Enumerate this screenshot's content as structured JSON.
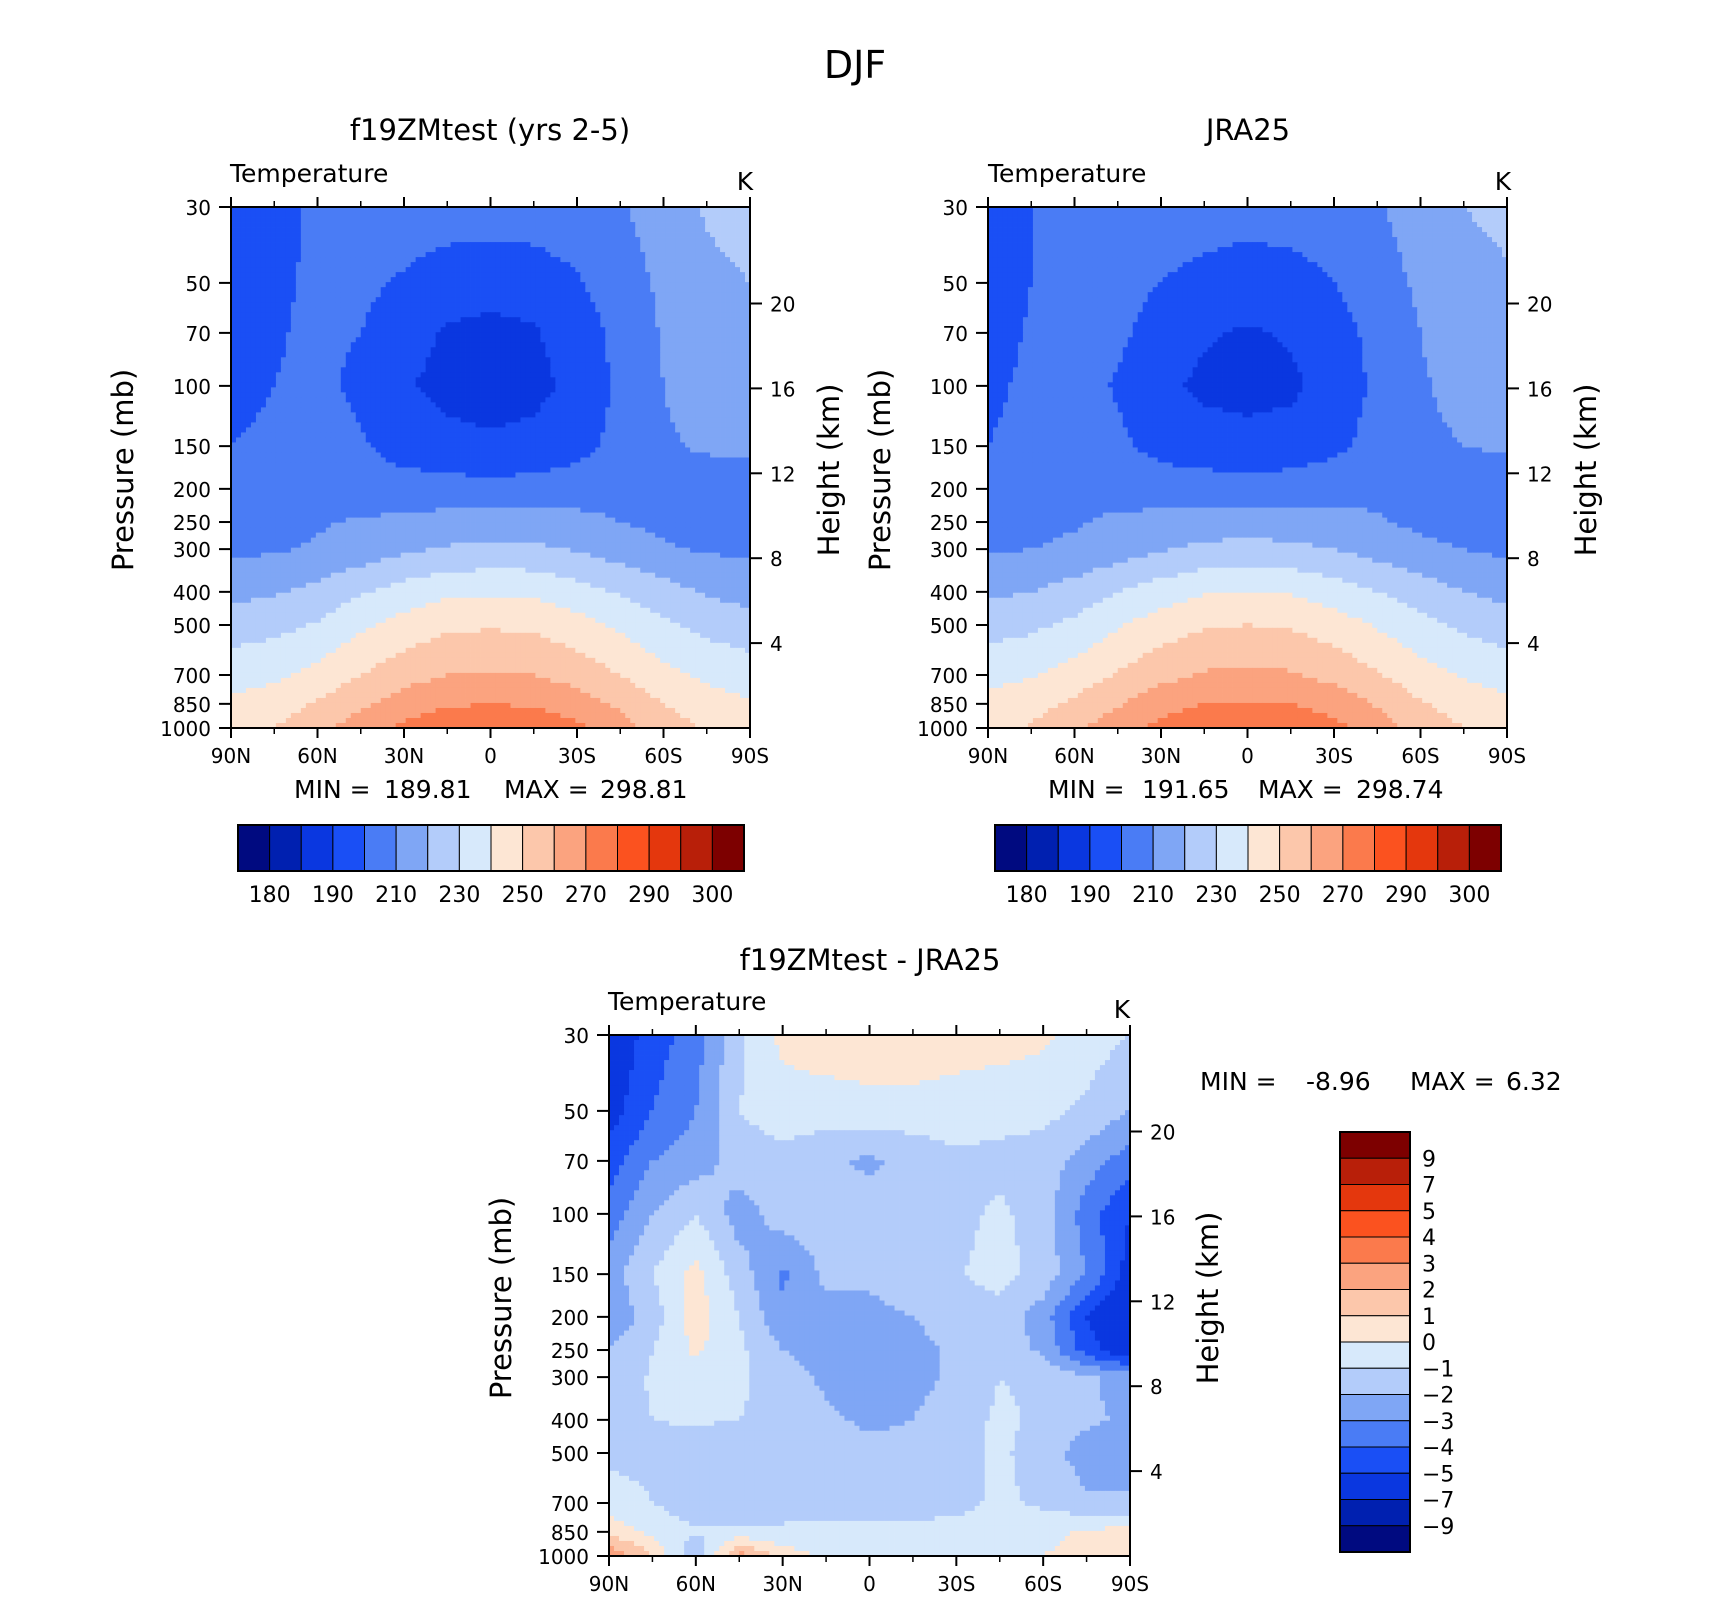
{
  "figure": {
    "title": "DJF"
  },
  "colors": {
    "abs_levels": [
      "#000a80",
      "#0020b0",
      "#0a37e0",
      "#1a4ff5",
      "#4a7cf5",
      "#7fa6f5",
      "#b3ccfa",
      "#d7e9fb",
      "#fde6d4",
      "#fcc7ab",
      "#fba37f",
      "#fb7a4c",
      "#fb521f",
      "#e4370d",
      "#b81f09",
      "#7d0000"
    ],
    "diff_levels": [
      "#000a80",
      "#0020b0",
      "#0a37e0",
      "#1a4ff5",
      "#4a7cf5",
      "#7fa6f5",
      "#b3ccfa",
      "#d7e9fb",
      "#fde6d4",
      "#fcc7ab",
      "#fba37f",
      "#fb7a4c",
      "#fb521f",
      "#e4370d",
      "#b81f09",
      "#7d0000"
    ]
  },
  "chart_data": [
    {
      "id": "model",
      "type": "heatmap",
      "title": "f19ZMtest (yrs 2-5)",
      "subtitle_left": "Temperature",
      "subtitle_right": "K",
      "xlabel": "",
      "ylabel": "Pressure (mb)",
      "ylabel_right": "Height (km)",
      "xticks": [
        "90N",
        "60N",
        "30N",
        "0",
        "30S",
        "60S",
        "90S"
      ],
      "yticks": [
        "30",
        "50",
        "70",
        "100",
        "150",
        "200",
        "250",
        "300",
        "400",
        "500",
        "700",
        "850",
        "1000"
      ],
      "yticks_right": [
        "20",
        "16",
        "12",
        "8",
        "4"
      ],
      "log_pressure_axis": true,
      "stats": {
        "min_label": "MIN =",
        "min": "189.81",
        "max_label": "MAX =",
        "max": "298.81"
      },
      "colorbar": {
        "orientation": "horizontal",
        "labels": [
          "180",
          "190",
          "210",
          "230",
          "250",
          "270",
          "290",
          "300"
        ]
      },
      "field": {
        "x": [
          90,
          75,
          60,
          45,
          30,
          15,
          0,
          -15,
          -30,
          -45,
          -60,
          -75,
          -90
        ],
        "p": [
          30,
          50,
          70,
          100,
          150,
          200,
          250,
          300,
          400,
          500,
          700,
          850,
          1000
        ],
        "T": [
          [
            202,
            206,
            212,
            214,
            215,
            215,
            215,
            215,
            216,
            219,
            225,
            231,
            233
          ],
          [
            202,
            208,
            212,
            212,
            209,
            205,
            204,
            205,
            209,
            215,
            222,
            228,
            230
          ],
          [
            203,
            209,
            212,
            210,
            204,
            199,
            197,
            199,
            205,
            213,
            221,
            226,
            228
          ],
          [
            207,
            210,
            212,
            208,
            201,
            197,
            195,
            197,
            203,
            212,
            220,
            224,
            226
          ],
          [
            210,
            212,
            214,
            211,
            206,
            203,
            202,
            203,
            207,
            213,
            219,
            221,
            222
          ],
          [
            212,
            214,
            216,
            215,
            214,
            214,
            213,
            214,
            215,
            217,
            218,
            216,
            215
          ],
          [
            215,
            216,
            219,
            221,
            222,
            224,
            224,
            224,
            223,
            220,
            218,
            216,
            215
          ],
          [
            218,
            219,
            221,
            224,
            228,
            231,
            232,
            232,
            229,
            225,
            221,
            219,
            218
          ],
          [
            227,
            229,
            233,
            239,
            244,
            248,
            249,
            248,
            244,
            239,
            234,
            229,
            226
          ],
          [
            235,
            237,
            241,
            248,
            254,
            258,
            259,
            258,
            254,
            248,
            242,
            237,
            234
          ],
          [
            246,
            248,
            253,
            260,
            266,
            270,
            271,
            270,
            266,
            260,
            253,
            248,
            245
          ],
          [
            252,
            255,
            261,
            268,
            275,
            279,
            280,
            279,
            275,
            268,
            260,
            254,
            251
          ],
          [
            256,
            260,
            267,
            275,
            282,
            286,
            287,
            286,
            282,
            274,
            265,
            259,
            255
          ]
        ]
      }
    },
    {
      "id": "obs",
      "type": "heatmap",
      "title": "JRA25",
      "subtitle_left": "Temperature",
      "subtitle_right": "K",
      "xlabel": "",
      "ylabel": "Pressure (mb)",
      "ylabel_right": "Height (km)",
      "xticks": [
        "90N",
        "60N",
        "30N",
        "0",
        "30S",
        "60S",
        "90S"
      ],
      "yticks": [
        "30",
        "50",
        "70",
        "100",
        "150",
        "200",
        "250",
        "300",
        "400",
        "500",
        "700",
        "850",
        "1000"
      ],
      "yticks_right": [
        "20",
        "16",
        "12",
        "8",
        "4"
      ],
      "log_pressure_axis": true,
      "stats": {
        "min_label": "MIN =",
        "min": "191.65",
        "max_label": "MAX =",
        "max": "298.74"
      },
      "colorbar": {
        "orientation": "horizontal",
        "labels": [
          "180",
          "190",
          "210",
          "230",
          "250",
          "270",
          "290",
          "300"
        ]
      },
      "field": {
        "x": [
          90,
          75,
          60,
          45,
          30,
          15,
          0,
          -15,
          -30,
          -45,
          -60,
          -75,
          -90
        ],
        "p": [
          30,
          50,
          70,
          100,
          150,
          200,
          250,
          300,
          400,
          500,
          700,
          850,
          1000
        ],
        "T": [
          [
            205,
            210,
            214,
            214,
            215,
            215,
            214,
            215,
            216,
            219,
            225,
            230,
            232
          ],
          [
            205,
            210,
            214,
            213,
            210,
            207,
            205,
            206,
            210,
            215,
            222,
            227,
            229
          ],
          [
            206,
            211,
            214,
            212,
            206,
            201,
            199,
            201,
            206,
            213,
            220,
            225,
            227
          ],
          [
            208,
            212,
            214,
            209,
            202,
            198,
            197,
            198,
            204,
            212,
            219,
            223,
            225
          ],
          [
            210,
            213,
            215,
            212,
            207,
            204,
            203,
            204,
            208,
            213,
            218,
            220,
            221
          ],
          [
            212,
            214,
            216,
            216,
            215,
            215,
            214,
            215,
            216,
            217,
            217,
            216,
            215
          ],
          [
            215,
            217,
            219,
            222,
            223,
            225,
            225,
            225,
            224,
            221,
            218,
            216,
            215
          ],
          [
            219,
            220,
            222,
            225,
            229,
            232,
            233,
            232,
            230,
            226,
            222,
            220,
            218
          ],
          [
            228,
            230,
            234,
            240,
            245,
            249,
            250,
            249,
            245,
            240,
            235,
            230,
            227
          ],
          [
            236,
            238,
            242,
            249,
            255,
            259,
            260,
            259,
            255,
            249,
            243,
            238,
            235
          ],
          [
            247,
            249,
            254,
            261,
            267,
            271,
            272,
            271,
            267,
            261,
            254,
            249,
            246
          ],
          [
            253,
            256,
            262,
            269,
            276,
            280,
            281,
            280,
            276,
            269,
            261,
            255,
            252
          ],
          [
            257,
            261,
            268,
            276,
            283,
            287,
            288,
            287,
            283,
            275,
            266,
            260,
            256
          ]
        ]
      }
    },
    {
      "id": "diff",
      "type": "heatmap",
      "title": "f19ZMtest - JRA25",
      "subtitle_left": "Temperature",
      "subtitle_right": "K",
      "xlabel": "",
      "ylabel": "Pressure (mb)",
      "ylabel_right": "Height (km)",
      "xticks": [
        "90N",
        "60N",
        "30N",
        "0",
        "30S",
        "60S",
        "90S"
      ],
      "yticks": [
        "30",
        "50",
        "70",
        "100",
        "150",
        "200",
        "250",
        "300",
        "400",
        "500",
        "700",
        "850",
        "1000"
      ],
      "yticks_right": [
        "20",
        "16",
        "12",
        "8",
        "4"
      ],
      "log_pressure_axis": true,
      "stats": {
        "min_label": "MIN =",
        "min": "-8.96",
        "max_label": "MAX =",
        "max": "6.32"
      },
      "colorbar": {
        "orientation": "vertical",
        "labels": [
          "9",
          "7",
          "5",
          "4",
          "3",
          "2",
          "1",
          "0",
          "−1",
          "−2",
          "−3",
          "−4",
          "−5",
          "−7",
          "−9"
        ]
      },
      "field": {
        "x": [
          90,
          75,
          60,
          45,
          30,
          15,
          0,
          -15,
          -30,
          -45,
          -60,
          -75,
          -90
        ],
        "p": [
          30,
          50,
          70,
          100,
          150,
          200,
          250,
          300,
          400,
          500,
          700,
          850,
          1000
        ],
        "T": [
          [
            -6.0,
            -4.5,
            -3.5,
            -1.2,
            0.3,
            0.6,
            0.6,
            0.9,
            0.5,
            0.4,
            0.2,
            -0.5,
            -1.0
          ],
          [
            -5.5,
            -4.0,
            -3.0,
            -1.0,
            -0.5,
            -0.5,
            -0.3,
            -0.5,
            -0.5,
            -0.6,
            -0.7,
            -1.2,
            -2.0
          ],
          [
            -4.5,
            -3.0,
            -2.5,
            -1.5,
            -1.3,
            -1.8,
            -2.2,
            -1.6,
            -1.2,
            -1.3,
            -1.5,
            -2.5,
            -3.5
          ],
          [
            -3.5,
            -2.0,
            -1.0,
            -2.5,
            -1.5,
            -1.5,
            -1.5,
            -1.4,
            -1.3,
            -0.8,
            -1.5,
            -3.5,
            -5.0
          ],
          [
            -2.5,
            -1.0,
            0.3,
            -1.5,
            -3.2,
            -1.7,
            -1.8,
            -1.3,
            -1.1,
            -0.6,
            -1.4,
            -3.0,
            -5.5
          ],
          [
            -2.8,
            -1.5,
            0.5,
            -1.0,
            -2.8,
            -2.5,
            -2.3,
            -2.0,
            -1.6,
            -1.4,
            -2.5,
            -5.0,
            -6.5
          ],
          [
            -2.0,
            -1.0,
            0.2,
            -0.8,
            -2.0,
            -2.5,
            -2.6,
            -2.3,
            -1.8,
            -1.5,
            -2.2,
            -4.5,
            -6.0
          ],
          [
            -1.5,
            -0.9,
            -0.5,
            -0.8,
            -1.5,
            -2.2,
            -2.5,
            -2.3,
            -1.8,
            -1.0,
            -1.2,
            -1.8,
            -2.5
          ],
          [
            -1.3,
            -1.0,
            -0.9,
            -1.0,
            -1.3,
            -1.8,
            -2.2,
            -2.0,
            -1.5,
            -0.8,
            -1.2,
            -1.8,
            -2.2
          ],
          [
            -1.2,
            -1.2,
            -1.5,
            -1.5,
            -1.5,
            -1.6,
            -1.7,
            -1.6,
            -1.4,
            -0.8,
            -1.5,
            -2.5,
            -2.6
          ],
          [
            -0.6,
            -1.0,
            -1.6,
            -1.6,
            -1.5,
            -1.4,
            -1.4,
            -1.4,
            -1.3,
            -0.8,
            -1.2,
            -1.8,
            -1.8
          ],
          [
            0.6,
            -0.3,
            -0.9,
            -0.8,
            -0.8,
            -0.7,
            -0.7,
            -0.7,
            -0.7,
            -0.5,
            -0.3,
            0.2,
            0.3
          ],
          [
            3.0,
            1.0,
            -2.0,
            2.5,
            0.5,
            -0.2,
            -0.1,
            -0.3,
            -0.4,
            -0.2,
            0.0,
            0.4,
            0.3
          ]
        ]
      }
    }
  ]
}
